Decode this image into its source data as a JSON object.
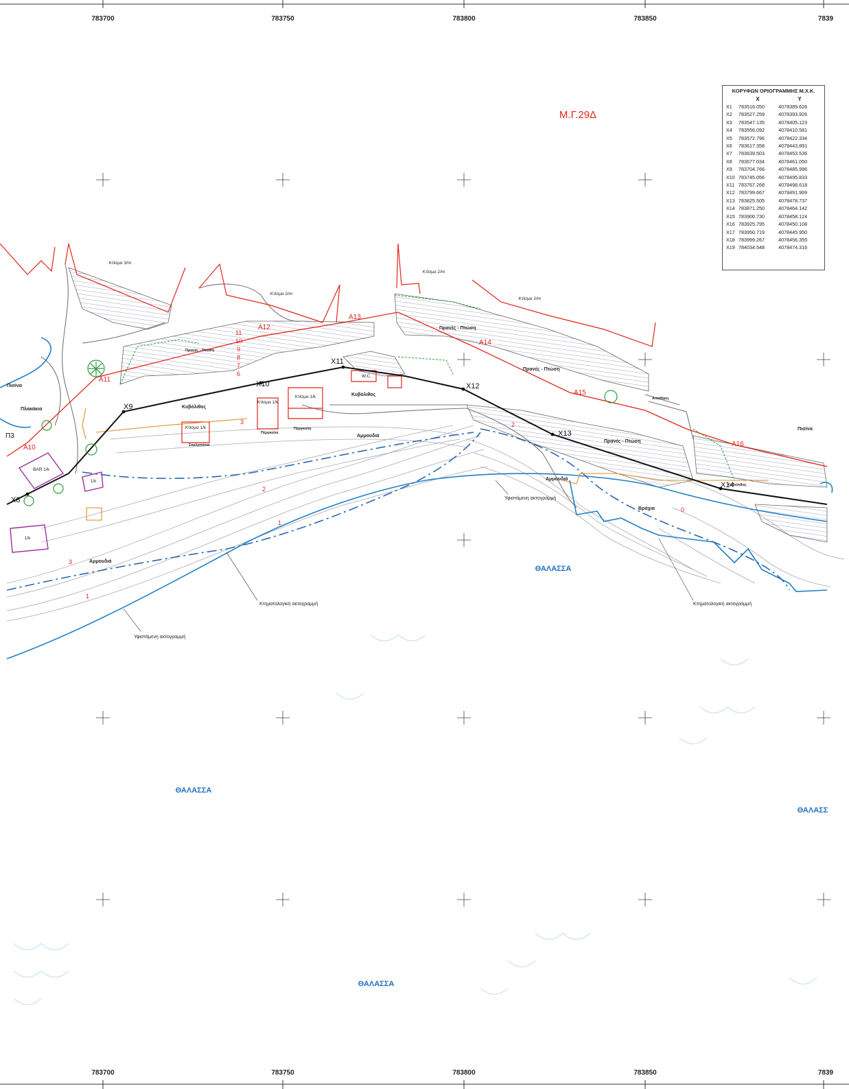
{
  "sheet_id": "Μ.Γ.29Δ",
  "grid_labels_top": [
    "783700",
    "783750",
    "783800",
    "783850",
    "7839"
  ],
  "grid_labels_bottom": [
    "783700",
    "783750",
    "783800",
    "783850",
    "7839"
  ],
  "sea_labels": [
    "ΘΑΛΑΣΣΑ",
    "ΘΑΛΑΣΣΑ",
    "ΘΑΛΑΣΣΑ",
    "ΘΑΛΑΣΣ"
  ],
  "line_labels": {
    "cadastral_shoreline": "Κτηματολογική ακτογραμμή",
    "existing_shoreline": "Υφιστάμενη ακτογραμμή"
  },
  "area_labels": {
    "slope": "Πρανές - Πτώση",
    "sand": "Αμμουδιά",
    "cobbles": "Κυβόλιθος",
    "rock": "Βράχια",
    "pool": "Πισίνα",
    "tiles": "Πλακάκια",
    "stairs": "Σκαλοπάτια",
    "pergola": "Πέργκολα",
    "building": "Κτίσμα",
    "bar": "BAR",
    "wc": "W.C.",
    "storage": "Αποθήκη"
  },
  "building_labels": [
    "Κτίσμα 3/m",
    "Κτίσμα 2/m",
    "Κτίσμα 2/m",
    "Κτίσμα 2/m",
    "Κτίσμα 1/k",
    "Κτίσμα 1/k",
    "Κτίσμα 1/k",
    "BAR 1/k",
    "1/k",
    "1/k"
  ],
  "boundary_points": [
    "X8",
    "X9",
    "X10",
    "X11",
    "X12",
    "X13",
    "X14"
  ],
  "shoreline_points": [
    "Α10",
    "Α11",
    "Α12",
    "Α13",
    "Α14",
    "Α15",
    "Α16"
  ],
  "extra_point": "Π3",
  "contour_numbers": [
    "11",
    "10",
    "9",
    "8",
    "7",
    "6",
    "3",
    "2",
    "1",
    "0",
    "2",
    "3",
    "1"
  ],
  "coordinate_table": {
    "title": "ΚΟΡΥΦΩΝ ΟΡΙΟΓΡΑΜΜΗΣ Μ.Χ.Κ.",
    "col_x": "X",
    "col_y": "Y",
    "rows": [
      {
        "pt": "X1",
        "x": "783516.050",
        "y": "4078389.626"
      },
      {
        "pt": "X2",
        "x": "783527.259",
        "y": "4078393.926"
      },
      {
        "pt": "X3",
        "x": "783547.135",
        "y": "4078405.123"
      },
      {
        "pt": "X4",
        "x": "783556.092",
        "y": "4078410.581"
      },
      {
        "pt": "X5",
        "x": "783572.796",
        "y": "4078422.334"
      },
      {
        "pt": "X6",
        "x": "783617.358",
        "y": "4078443.891"
      },
      {
        "pt": "X7",
        "x": "783639.503",
        "y": "4078453.536"
      },
      {
        "pt": "X8",
        "x": "783677.034",
        "y": "4078461.050"
      },
      {
        "pt": "X9",
        "x": "783704.766",
        "y": "4078485.996"
      },
      {
        "pt": "X10",
        "x": "783745.056",
        "y": "4078495.833"
      },
      {
        "pt": "X11",
        "x": "783767.268",
        "y": "4078498.618"
      },
      {
        "pt": "X12",
        "x": "783799.667",
        "y": "4078491.969"
      },
      {
        "pt": "X13",
        "x": "783825.505",
        "y": "4078478.737"
      },
      {
        "pt": "X14",
        "x": "783871.250",
        "y": "4078464.142"
      },
      {
        "pt": "X15",
        "x": "783900.730",
        "y": "4078458.124"
      },
      {
        "pt": "X16",
        "x": "783925.795",
        "y": "4078450.108"
      },
      {
        "pt": "X17",
        "x": "783950.719",
        "y": "4078445.950"
      },
      {
        "pt": "X18",
        "x": "783999.267",
        "y": "4078456.355"
      },
      {
        "pt": "X19",
        "x": "784034.548",
        "y": "4078474.316"
      }
    ]
  },
  "colors": {
    "boundary_line": "#111111",
    "shoreline_red": "#e2231a",
    "shore_blue": "#1f7fc4",
    "dashdot_blue": "#2b66b0",
    "contour": "#9a9aa8",
    "hatch": "#7e7ea6",
    "green": "#2e9b3a",
    "orange": "#e08a1e",
    "magenta": "#9b2f9b",
    "sea_text": "#1f6fc2"
  }
}
